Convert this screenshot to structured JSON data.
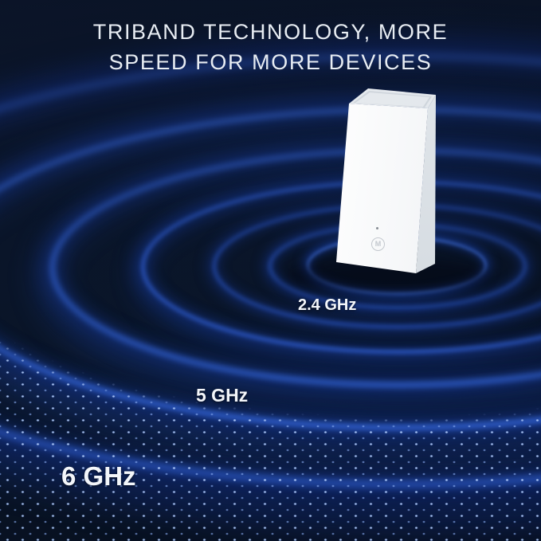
{
  "title": {
    "line1": "TRIBAND TECHNOLOGY, MORE",
    "line2": "SPEED FOR MORE DEVICES"
  },
  "bands": [
    {
      "label": "2.4 GHz"
    },
    {
      "label": "5 GHz"
    },
    {
      "label": "6 GHz"
    }
  ],
  "device": {
    "logo_letter": "M"
  },
  "colors": {
    "background": "#0b1830",
    "ring_blue": "#3468e0",
    "dot_blue": "#9db8e8",
    "text": "#e8edf3",
    "device_white": "#fafbfc"
  }
}
